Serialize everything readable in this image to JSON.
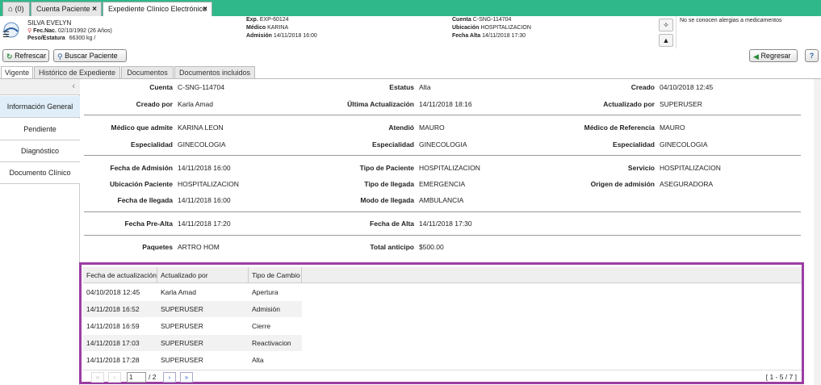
{
  "top_tabs": [
    {
      "label": "(0)"
    },
    {
      "label": "Cuenta Paciente"
    },
    {
      "label": "Expediente Clínico Electrónico"
    }
  ],
  "patient": {
    "name": "SILVA EVELYN",
    "fecnac_label": "Fec.Nac.",
    "fecnac_value": "02/10/1992 (26 Años)",
    "peso_label": "Peso/Estatura",
    "peso_value": "66300 kg /",
    "exp_label": "Exp.",
    "exp_value": "EXP-60124",
    "medico_label": "Médico",
    "medico_value": "KARINA",
    "admision_label": "Admisión",
    "admision_value": "14/11/2018 16:00",
    "cuenta_label": "Cuenta",
    "cuenta_value": "C-SNG-114704",
    "ubicacion_label": "Ubicación",
    "ubicacion_value": "HOSPITALIZACION",
    "fechaalta_label": "Fecha Alta",
    "fechaalta_value": "14/11/2018 17:30",
    "allergy": "No se conocen alergias a medicamentos"
  },
  "toolbar": {
    "refresh": "Refrescar",
    "search_patient": "Buscar Paciente",
    "back": "Regresar",
    "help": "?"
  },
  "sub_tabs": [
    {
      "label": "Vigente"
    },
    {
      "label": "Histórico de Expediente"
    },
    {
      "label": "Documentos"
    },
    {
      "label": "Documentos incluidos"
    }
  ],
  "left_nav": [
    {
      "label": "Información General"
    },
    {
      "label": "Pendiente"
    },
    {
      "label": "Diagnóstico"
    },
    {
      "label": "Documento Clínico"
    }
  ],
  "fields": {
    "cuenta": {
      "label": "Cuenta",
      "value": "C-SNG-114704"
    },
    "estatus": {
      "label": "Estatus",
      "value": "Alta"
    },
    "creado": {
      "label": "Creado",
      "value": "04/10/2018 12:45"
    },
    "creado_por": {
      "label": "Creado por",
      "value": "Karla  Amad"
    },
    "ultima_act": {
      "label": "Última Actualización",
      "value": "14/11/2018 18:16"
    },
    "actualizado_por": {
      "label": "Actualizado por",
      "value": "SUPERUSER"
    },
    "medico_admite": {
      "label": "Médico que admite",
      "value": "KARINA LEON"
    },
    "atendio": {
      "label": "Atendió",
      "value": "MAURO"
    },
    "medico_ref": {
      "label": "Médico de Referencia",
      "value": "MAURO"
    },
    "esp1": {
      "label": "Especialidad",
      "value": "GINECOLOGIA"
    },
    "esp2": {
      "label": "Especialidad",
      "value": "GINECOLOGIA"
    },
    "esp3": {
      "label": "Especialidad",
      "value": "GINECOLOGIA"
    },
    "fecha_admision": {
      "label": "Fecha de Admisión",
      "value": "14/11/2018 16:00"
    },
    "tipo_paciente": {
      "label": "Tipo de Paciente",
      "value": "HOSPITALIZACION"
    },
    "servicio": {
      "label": "Servicio",
      "value": "HOSPITALIZACION"
    },
    "ubicacion_paciente": {
      "label": "Ubicación Paciente",
      "value": "HOSPITALIZACION"
    },
    "tipo_llegada": {
      "label": "Tipo de llegada",
      "value": "EMERGENCIA"
    },
    "origen_admision": {
      "label": "Origen de admisión",
      "value": "ASEGURADORA"
    },
    "fecha_llegada": {
      "label": "Fecha de llegada",
      "value": "14/11/2018 16:00"
    },
    "modo_llegada": {
      "label": "Modo de llegada",
      "value": "AMBULANCIA"
    },
    "fecha_prealta": {
      "label": "Fecha Pre-Alta",
      "value": "14/11/2018 17:20"
    },
    "fecha_alta": {
      "label": "Fecha de Alta",
      "value": "14/11/2018 17:30"
    },
    "paquetes": {
      "label": "Paquetes",
      "value": "ARTRO HOM"
    },
    "total_anticipo": {
      "label": "Total anticipo",
      "value": "$500.00"
    }
  },
  "history": {
    "columns": [
      "Fecha de actualización",
      "Actualizado por",
      "Tipo de Cambio"
    ],
    "rows": [
      [
        "04/10/2018 12:45",
        "Karla  Amad",
        "Apertura"
      ],
      [
        "14/11/2018 16:52",
        "SUPERUSER",
        "Admisión"
      ],
      [
        "14/11/2018 16:59",
        "SUPERUSER",
        "Cierre"
      ],
      [
        "14/11/2018 17:03",
        "SUPERUSER",
        "Reactivacion"
      ],
      [
        "14/11/2018 17:28",
        "SUPERUSER",
        "Alta"
      ]
    ],
    "page_current": "1",
    "page_total": "/ 2",
    "range": "[ 1 - 5 / 7 ]"
  },
  "colors": {
    "accent": "#2fb88a",
    "highlight_border": "#9b3da3",
    "nav_active": "#dfeef8"
  }
}
